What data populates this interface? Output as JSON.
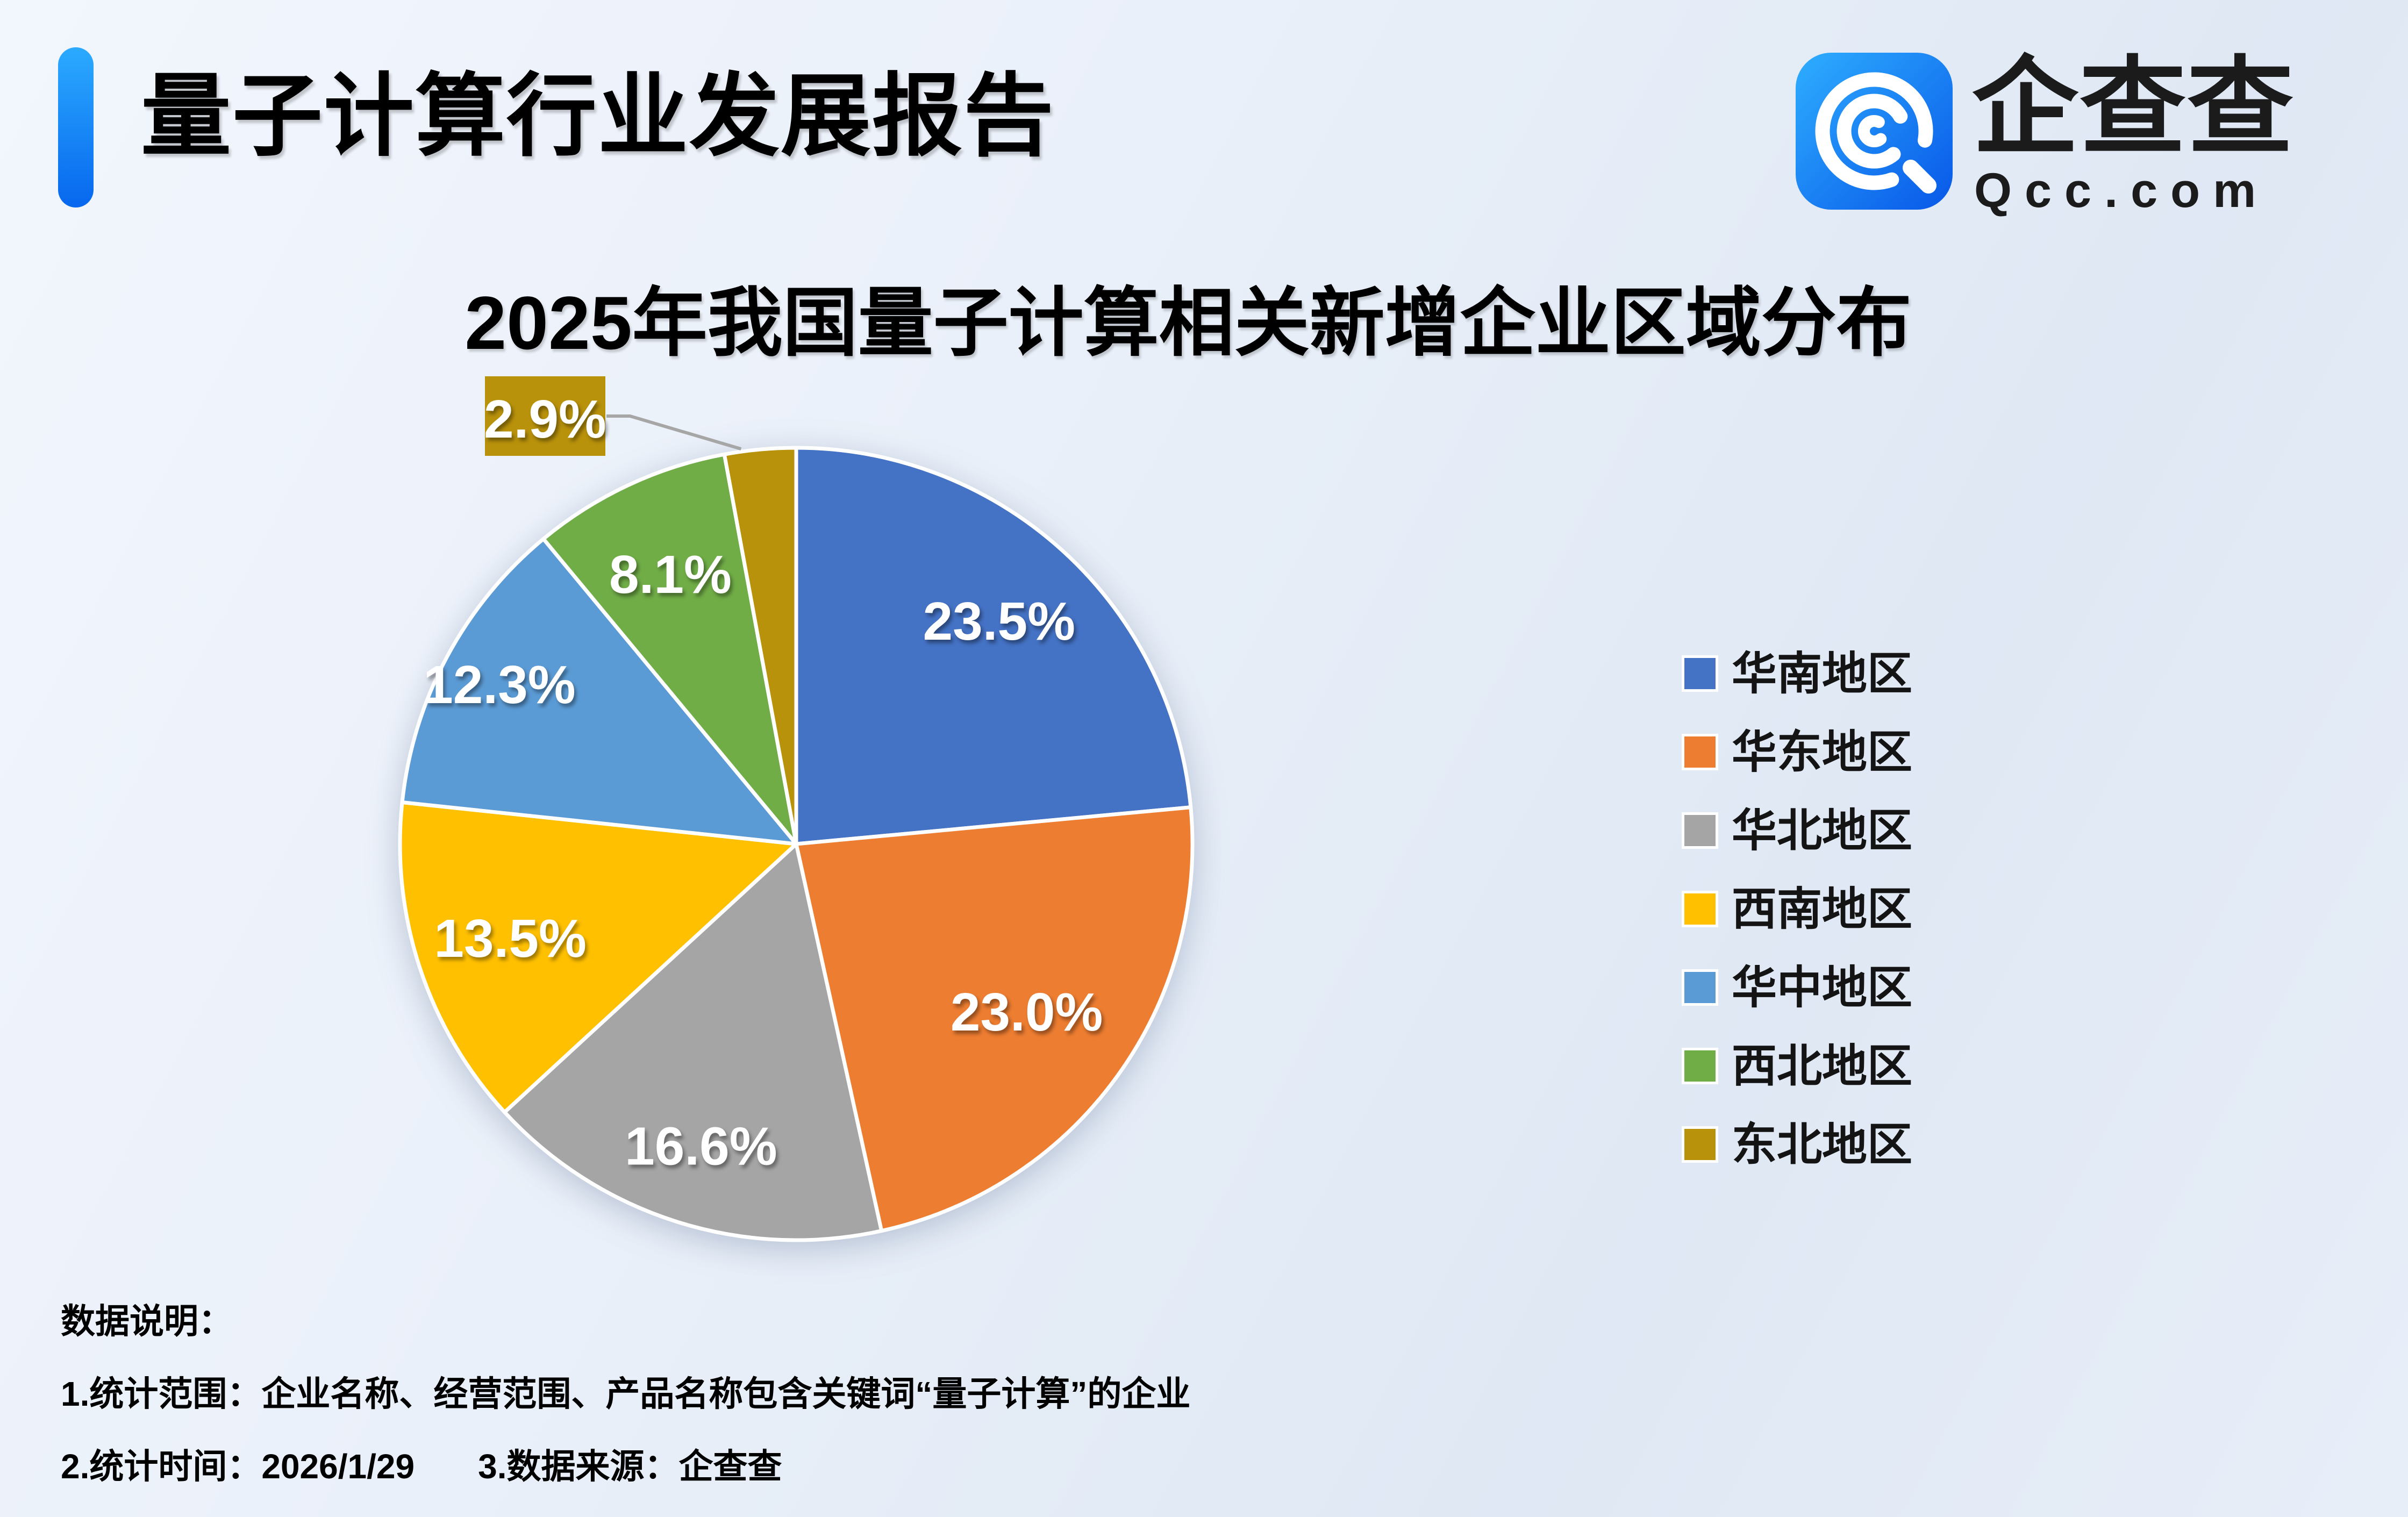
{
  "header": {
    "title": "量子计算行业发展报告",
    "logo_name": "企查查",
    "logo_domain": "Qcc.com"
  },
  "theme": {
    "background_tint": "#E9EFF9",
    "accent_bar_gradient": [
      "#2BAAFF",
      "#0767EE"
    ],
    "logo_icon_gradient": [
      "#2EAEFF",
      "#0857E8"
    ],
    "callout_leader_color": "#A6A6A6",
    "data_label_color": "#FFFFFF"
  },
  "chart_data": {
    "type": "pie",
    "title": "2025年我国量子计算相关新增企业区域分布",
    "legend_position": "right",
    "grid": false,
    "slices": [
      {
        "label": "华南地区",
        "value": 23.5,
        "display": "23.5%",
        "color": "#4472C4"
      },
      {
        "label": "华东地区",
        "value": 23.0,
        "display": "23.0%",
        "color": "#ED7D31"
      },
      {
        "label": "华北地区",
        "value": 16.6,
        "display": "16.6%",
        "color": "#A5A5A5"
      },
      {
        "label": "西南地区",
        "value": 13.5,
        "display": "13.5%",
        "color": "#FFC000"
      },
      {
        "label": "华中地区",
        "value": 12.3,
        "display": "12.3%",
        "color": "#5B9BD5"
      },
      {
        "label": "西北地区",
        "value": 8.1,
        "display": "8.1%",
        "color": "#70AD47"
      },
      {
        "label": "东北地区",
        "value": 2.9,
        "display": "2.9%",
        "color": "#B9920B",
        "callout": true
      }
    ]
  },
  "footer": {
    "heading": "数据说明：",
    "note1": "1.统计范围：企业名称、经营范围、产品名称包含关键词“量子计算”的企业",
    "note2": "2.统计时间：2026/1/29",
    "note3": "3.数据来源：企查查"
  }
}
